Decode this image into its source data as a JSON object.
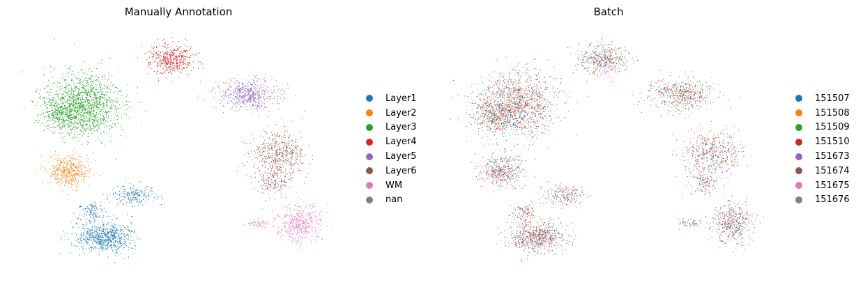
{
  "chart_data": [
    {
      "type": "scatter",
      "title": "Manually Annotation",
      "xlabel": "",
      "ylabel": "",
      "grid": false,
      "legend_position": "right",
      "legend": [
        {
          "label": "Layer1",
          "color": "#1f77b4"
        },
        {
          "label": "Layer2",
          "color": "#ff7f0e"
        },
        {
          "label": "Layer3",
          "color": "#2ca02c"
        },
        {
          "label": "Layer4",
          "color": "#d62728"
        },
        {
          "label": "Layer5",
          "color": "#9467bd"
        },
        {
          "label": "Layer6",
          "color": "#8c564b"
        },
        {
          "label": "WM",
          "color": "#e377c2"
        },
        {
          "label": "nan",
          "color": "#7f7f7f"
        }
      ]
    },
    {
      "type": "scatter",
      "title": "Batch",
      "xlabel": "",
      "ylabel": "",
      "grid": false,
      "legend_position": "right",
      "legend": [
        {
          "label": "151507",
          "color": "#1f77b4"
        },
        {
          "label": "151508",
          "color": "#ff7f0e"
        },
        {
          "label": "151509",
          "color": "#2ca02c"
        },
        {
          "label": "151510",
          "color": "#d62728"
        },
        {
          "label": "151673",
          "color": "#9467bd"
        },
        {
          "label": "151674",
          "color": "#8c564b"
        },
        {
          "label": "151675",
          "color": "#e377c2"
        },
        {
          "label": "151676",
          "color": "#7f7f7f"
        }
      ]
    }
  ]
}
